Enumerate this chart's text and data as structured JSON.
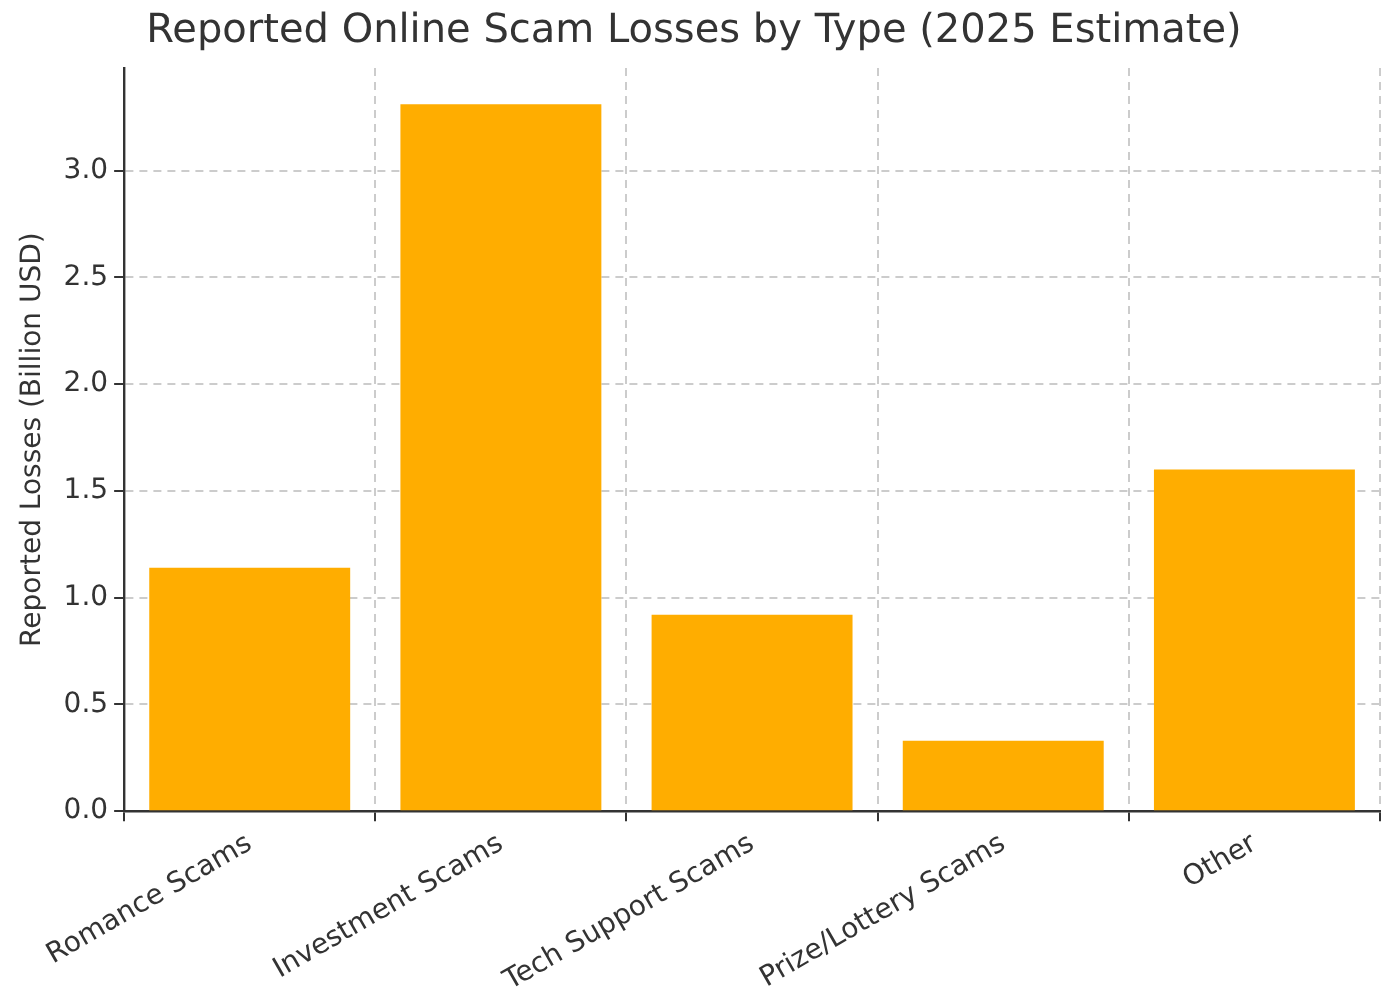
{
  "chart_data": {
    "type": "bar",
    "title": "Reported Online Scam Losses by Type (2025 Estimate)",
    "ylabel": "Reported Losses (Billion USD)",
    "categories": [
      "Romance Scams",
      "Investment Scams",
      "Tech Support Scams",
      "Prize/Lottery Scams",
      "Other"
    ],
    "values": [
      1.14,
      3.31,
      0.92,
      0.33,
      1.6
    ],
    "color": "#ffad00",
    "ylim": [
      0,
      3.48
    ],
    "yticks": [
      {
        "value": 0,
        "label": "0.0"
      },
      {
        "value": 0.5,
        "label": "0.5"
      },
      {
        "value": 1,
        "label": "1.0"
      },
      {
        "value": 1.5,
        "label": "1.5"
      },
      {
        "value": 2,
        "label": "2.0"
      },
      {
        "value": 2.5,
        "label": "2.5"
      },
      {
        "value": 3,
        "label": "3.0"
      }
    ],
    "grid": true
  }
}
